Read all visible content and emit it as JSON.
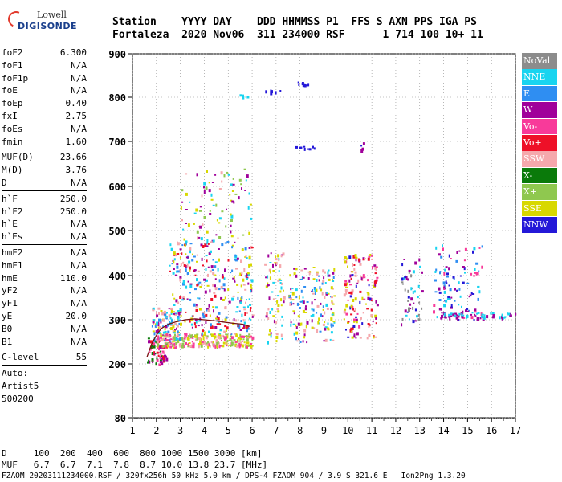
{
  "logo": {
    "line1": "Lowell",
    "line2": "DIGISONDE"
  },
  "header": {
    "line1": "Station    YYYY DAY    DDD HHMMSS P1  FFS S AXN PPS IGA PS",
    "line2": "Fortaleza  2020 Nov06  311 234000 RSF      1 714 100 10+ 11"
  },
  "params": [
    {
      "k": "foF2",
      "v": "6.300"
    },
    {
      "k": "foF1",
      "v": "N/A"
    },
    {
      "k": "foF1p",
      "v": "N/A"
    },
    {
      "k": "foE",
      "v": "N/A"
    },
    {
      "k": "foEp",
      "v": "0.40"
    },
    {
      "k": "fxI",
      "v": "2.75"
    },
    {
      "k": "foEs",
      "v": "N/A"
    },
    {
      "k": "fmin",
      "v": "1.60"
    },
    {
      "sep": true
    },
    {
      "k": "MUF(D)",
      "v": "23.66"
    },
    {
      "k": "M(D)",
      "v": "3.76"
    },
    {
      "k": "D",
      "v": "N/A"
    },
    {
      "sep": true
    },
    {
      "k": "h`F",
      "v": "250.0"
    },
    {
      "k": "h`F2",
      "v": "250.0"
    },
    {
      "k": "h`E",
      "v": "N/A"
    },
    {
      "k": "h`Es",
      "v": "N/A"
    },
    {
      "sep": true
    },
    {
      "k": "hmF2",
      "v": "N/A"
    },
    {
      "k": "hmF1",
      "v": "N/A"
    },
    {
      "k": "hmE",
      "v": "110.0"
    },
    {
      "k": "yF2",
      "v": "N/A"
    },
    {
      "k": "yF1",
      "v": "N/A"
    },
    {
      "k": "yE",
      "v": "20.0"
    },
    {
      "k": "B0",
      "v": "N/A"
    },
    {
      "k": "B1",
      "v": "N/A"
    },
    {
      "sep": true
    },
    {
      "k": "C-level",
      "v": "55"
    },
    {
      "sep": true
    },
    {
      "t": "Auto:"
    },
    {
      "t": "Artist5"
    },
    {
      "t": "500200"
    }
  ],
  "legend": [
    {
      "label": "NoVal",
      "color": "#8c8c8c"
    },
    {
      "label": "NNE",
      "color": "#19d4f0"
    },
    {
      "label": "E",
      "color": "#2f8ef2"
    },
    {
      "label": "W",
      "color": "#a0009a"
    },
    {
      "label": "Vo-",
      "color": "#f83a9a"
    },
    {
      "label": "Vo+",
      "color": "#ee1028"
    },
    {
      "label": "SSW",
      "color": "#f5a8ac"
    },
    {
      "label": "X-",
      "color": "#0a7a0a"
    },
    {
      "label": "X+",
      "color": "#8fc84f"
    },
    {
      "label": "SSE",
      "color": "#d8d800"
    },
    {
      "label": "NNW",
      "color": "#2418d8"
    }
  ],
  "footer": {
    "line1": "D     100  200  400  600  800 1000 1500 3000 [km]",
    "line2": "MUF   6.7  6.7  7.1  7.8  8.7 10.0 13.8 23.7 [MHz]",
    "line3": "FZAOM_20203111234000.RSF / 320fx256h 50 kHz 5.0 km / DPS-4 FZAOM 904 / 3.9 S 321.6 E   Ion2Png 1.3.20"
  },
  "chart_data": {
    "type": "scatter",
    "x_ticks": [
      1,
      2,
      3,
      4,
      5,
      6,
      7,
      8,
      9,
      10,
      11,
      12,
      13,
      14,
      15,
      16,
      17
    ],
    "y_ticks": [
      80,
      200,
      300,
      400,
      500,
      600,
      700,
      800,
      900
    ],
    "xlim": [
      1,
      17
    ],
    "ylim": [
      80,
      900
    ],
    "grid": "dotted",
    "trace": {
      "x": [
        1.6,
        1.8,
        2.0,
        2.2,
        2.5,
        2.8,
        3.2,
        3.6,
        4.0,
        4.4,
        4.8,
        5.2,
        5.6,
        5.9
      ],
      "y": [
        215,
        245,
        265,
        280,
        290,
        295,
        300,
        302,
        300,
        298,
        295,
        292,
        290,
        285
      ]
    },
    "clusters": [
      {
        "x": [
          1.6,
          2.4
        ],
        "y": [
          200,
          260
        ],
        "n": 80,
        "colors": [
          "#a0009a",
          "#ee1028",
          "#f83a9a",
          "#0a7a0a"
        ]
      },
      {
        "x": [
          1.8,
          3.0
        ],
        "y": [
          250,
          330
        ],
        "n": 120,
        "colors": [
          "#f5a8ac",
          "#d8d800",
          "#2f8ef2",
          "#19d4f0",
          "#a0009a"
        ]
      },
      {
        "x": [
          2.0,
          6.0
        ],
        "y": [
          240,
          270
        ],
        "n": 260,
        "colors": [
          "#d8d800",
          "#f5a8ac",
          "#8fc84f",
          "#f83a9a"
        ]
      },
      {
        "x": [
          2.5,
          6.0
        ],
        "y": [
          270,
          480
        ],
        "n": 320,
        "colors": [
          "#a0009a",
          "#f5a8ac",
          "#d8d800",
          "#2f8ef2",
          "#ee1028",
          "#19d4f0"
        ]
      },
      {
        "x": [
          3.0,
          6.0
        ],
        "y": [
          480,
          640
        ],
        "n": 90,
        "colors": [
          "#a0009a",
          "#f5a8ac",
          "#d8d800",
          "#19d4f0",
          "#8fc84f"
        ]
      },
      {
        "x": [
          6.5,
          7.3
        ],
        "y": [
          250,
          460
        ],
        "n": 70,
        "colors": [
          "#d8d800",
          "#f5a8ac",
          "#a0009a",
          "#19d4f0"
        ]
      },
      {
        "x": [
          7.5,
          9.4
        ],
        "y": [
          250,
          420
        ],
        "n": 160,
        "colors": [
          "#d8d800",
          "#f5a8ac",
          "#a0009a",
          "#19d4f0",
          "#2f8ef2"
        ]
      },
      {
        "x": [
          9.8,
          11.2
        ],
        "y": [
          260,
          450
        ],
        "n": 140,
        "colors": [
          "#d8d800",
          "#f5a8ac",
          "#a0009a",
          "#f83a9a",
          "#2418d8",
          "#ee1028"
        ]
      },
      {
        "x": [
          12.2,
          13.1
        ],
        "y": [
          290,
          440
        ],
        "n": 50,
        "colors": [
          "#2418d8",
          "#19d4f0",
          "#a0009a",
          "#8c8c8c"
        ]
      },
      {
        "x": [
          13.5,
          15.6
        ],
        "y": [
          300,
          470
        ],
        "n": 110,
        "colors": [
          "#2418d8",
          "#a0009a",
          "#19d4f0",
          "#2f8ef2",
          "#f83a9a"
        ]
      },
      {
        "x": [
          13.8,
          17.0
        ],
        "y": [
          305,
          318
        ],
        "n": 60,
        "colors": [
          "#a0009a",
          "#19d4f0"
        ]
      },
      {
        "x": [
          5.4,
          5.8
        ],
        "y": [
          800,
          808
        ],
        "n": 4,
        "colors": [
          "#19d4f0"
        ]
      },
      {
        "x": [
          6.5,
          7.2
        ],
        "y": [
          810,
          818
        ],
        "n": 8,
        "colors": [
          "#2418d8"
        ]
      },
      {
        "x": [
          7.8,
          8.5
        ],
        "y": [
          822,
          838
        ],
        "n": 10,
        "colors": [
          "#2418d8"
        ]
      },
      {
        "x": [
          7.8,
          8.6
        ],
        "y": [
          683,
          690
        ],
        "n": 10,
        "colors": [
          "#2418d8"
        ]
      },
      {
        "x": [
          10.5,
          10.7
        ],
        "y": [
          672,
          705
        ],
        "n": 4,
        "colors": [
          "#2418d8",
          "#a0009a"
        ]
      }
    ]
  }
}
